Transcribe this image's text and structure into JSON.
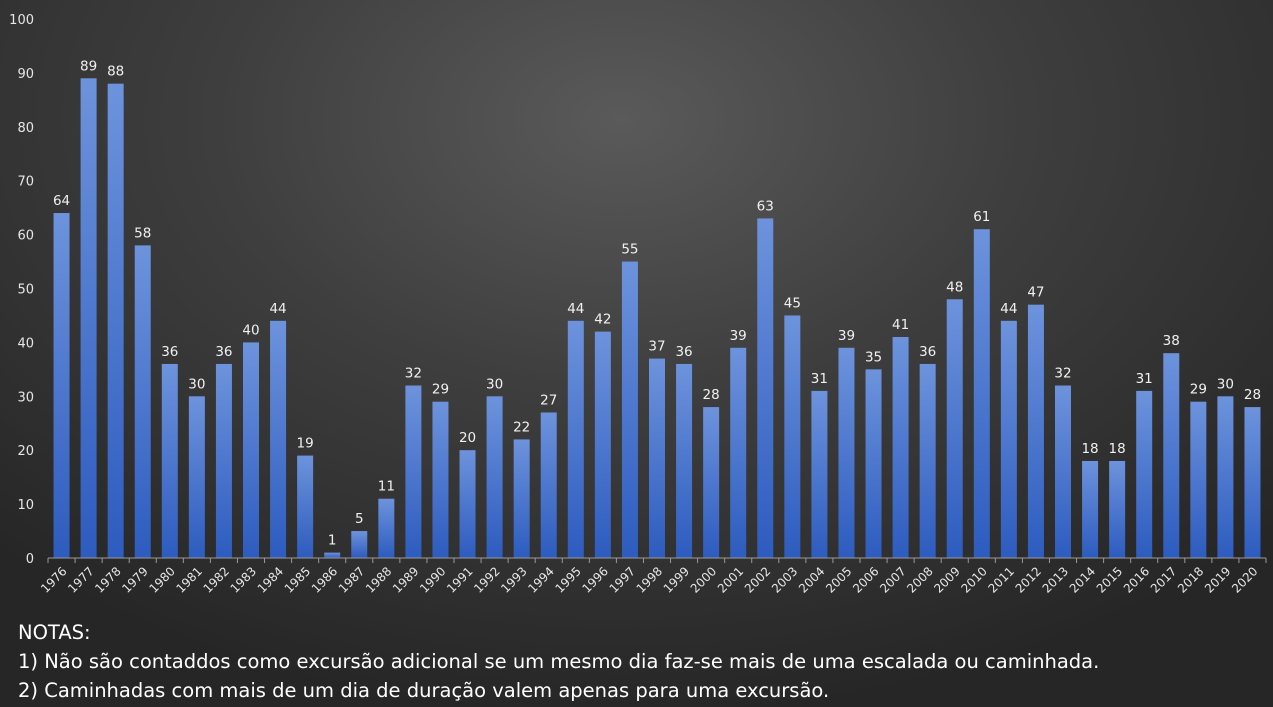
{
  "chart_data": {
    "type": "bar",
    "title": "",
    "xlabel": "",
    "ylabel": "",
    "ylim": [
      0,
      100
    ],
    "yticks": [
      0,
      10,
      20,
      30,
      40,
      50,
      60,
      70,
      80,
      90,
      100
    ],
    "grid": false,
    "categories": [
      "1976",
      "1977",
      "1978",
      "1979",
      "1980",
      "1981",
      "1982",
      "1983",
      "1984",
      "1985",
      "1986",
      "1987",
      "1988",
      "1989",
      "1990",
      "1991",
      "1992",
      "1993",
      "1994",
      "1995",
      "1996",
      "1997",
      "1998",
      "1999",
      "2000",
      "2001",
      "2002",
      "2003",
      "2004",
      "2005",
      "2006",
      "2007",
      "2008",
      "2009",
      "2010",
      "2011",
      "2012",
      "2013",
      "2014",
      "2015",
      "2016",
      "2017",
      "2018",
      "2019",
      "2020"
    ],
    "values": [
      64,
      89,
      88,
      58,
      36,
      30,
      36,
      40,
      44,
      19,
      1,
      5,
      11,
      32,
      29,
      20,
      30,
      22,
      27,
      44,
      42,
      55,
      37,
      36,
      28,
      39,
      63,
      45,
      31,
      39,
      35,
      41,
      36,
      48,
      61,
      44,
      47,
      32,
      18,
      18,
      31,
      38,
      29,
      30,
      28
    ],
    "bar_color_top": "#6d93dc",
    "bar_color_bottom": "#2d5cbf"
  },
  "notes": {
    "heading": "NOTAS:",
    "items": [
      "1) Não são contaddos como excursão adicional se um mesmo dia faz-se mais de uma escalada ou caminhada.",
      "2) Caminhadas com mais de um dia de duração valem apenas para uma excursão."
    ]
  }
}
